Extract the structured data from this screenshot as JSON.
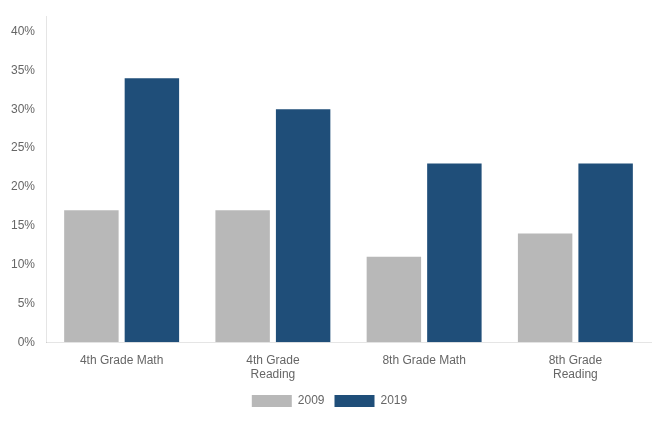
{
  "chart_data": {
    "type": "bar",
    "categories": [
      "4th Grade Math",
      "4th Grade\nReading",
      "8th Grade Math",
      "8th Grade\nReading"
    ],
    "series": [
      {
        "name": "2009",
        "color": "#b8b8b8",
        "values": [
          0.17,
          0.17,
          0.11,
          0.14
        ]
      },
      {
        "name": "2019",
        "color": "#1f4e79",
        "values": [
          0.34,
          0.3,
          0.23,
          0.23
        ]
      }
    ],
    "ylim": [
      0,
      0.42
    ],
    "yticks": [
      {
        "value": 0,
        "label": "0%"
      },
      {
        "value": 0.05,
        "label": "5%"
      },
      {
        "value": 0.1,
        "label": "10%"
      },
      {
        "value": 0.15,
        "label": "15%"
      },
      {
        "value": 0.2,
        "label": "20%"
      },
      {
        "value": 0.25,
        "label": "25%"
      },
      {
        "value": 0.3,
        "label": "30%"
      },
      {
        "value": 0.35,
        "label": "35%"
      },
      {
        "value": 0.4,
        "label": "40%"
      }
    ],
    "grid": false,
    "legend": "bottom"
  }
}
